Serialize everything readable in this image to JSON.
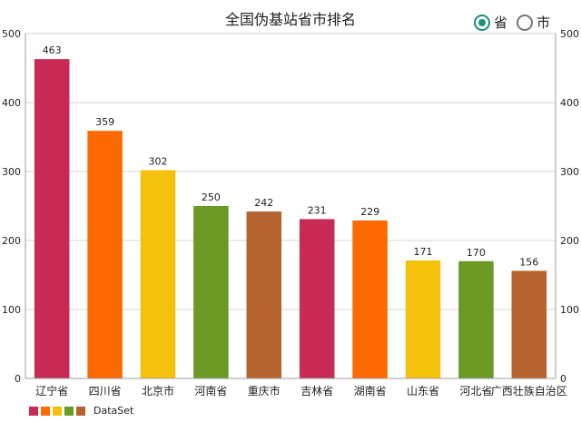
{
  "chart_data": {
    "type": "bar",
    "title": "全国伪基站省市排名",
    "categories": [
      "辽宁省",
      "四川省",
      "北京市",
      "河南省",
      "重庆市",
      "吉林省",
      "湖南省",
      "山东省",
      "河北省",
      "广西壮族自治区"
    ],
    "values": [
      463,
      359,
      302,
      250,
      242,
      231,
      229,
      171,
      170,
      156
    ],
    "ylim": [
      0,
      500
    ],
    "yticks": [
      0,
      100,
      200,
      300,
      400,
      500
    ],
    "grid": true,
    "bar_colors": [
      "#c62a55",
      "#ff6a00",
      "#f4c20d",
      "#6a9a23",
      "#b5632f"
    ],
    "legend": {
      "label": "DataSet",
      "placement": "bottom-left"
    }
  },
  "controls": {
    "options": [
      {
        "label": "省",
        "checked": true
      },
      {
        "label": "市",
        "checked": false
      }
    ],
    "accent": "#1a8f7a"
  }
}
